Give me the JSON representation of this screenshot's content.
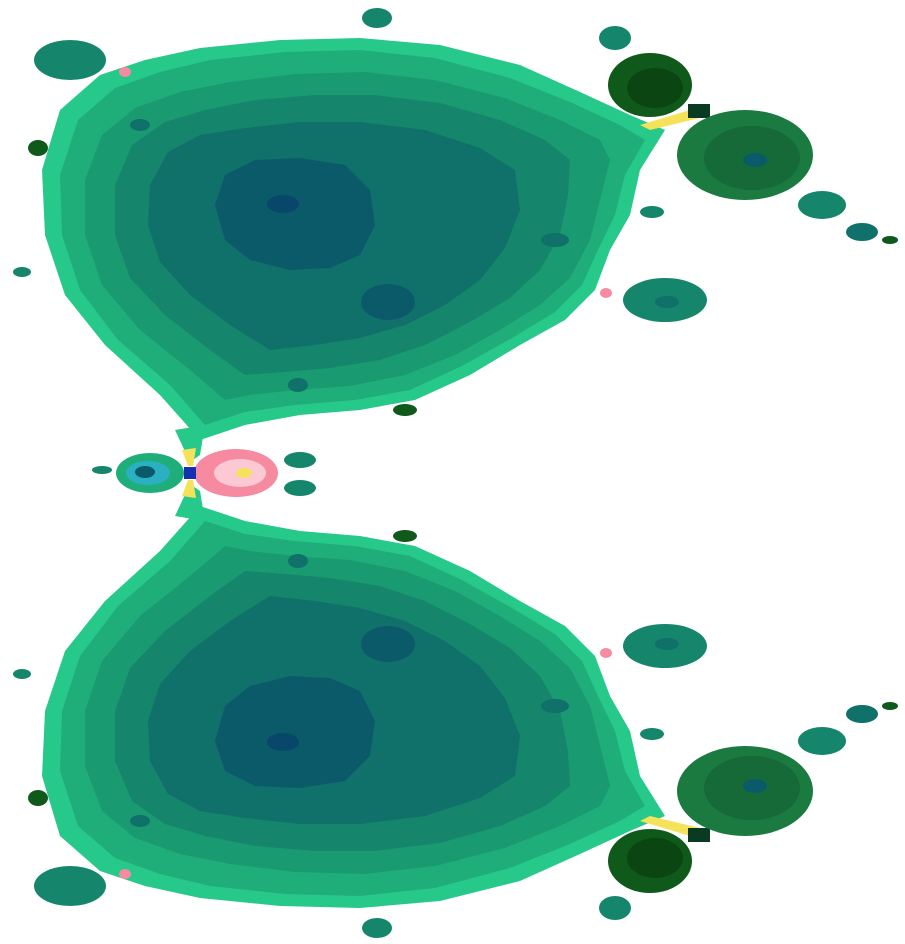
{
  "image": {
    "subject": "fractal",
    "background": "#ffffff",
    "palette": {
      "light_green": "#27c98a",
      "mid_green": "#1fae7a",
      "green": "#1a9a70",
      "teal": "#15866c",
      "deep_teal": "#10706a",
      "dark_teal": "#0b5a6a",
      "darkest": "#08466a",
      "dark_green": "#0f5a1a",
      "yellow": "#f4e25a",
      "pink": "#f58aa0",
      "light_pink": "#fbc8d4",
      "blue": "#1530b0",
      "cyan": "#2ab0c0"
    }
  }
}
